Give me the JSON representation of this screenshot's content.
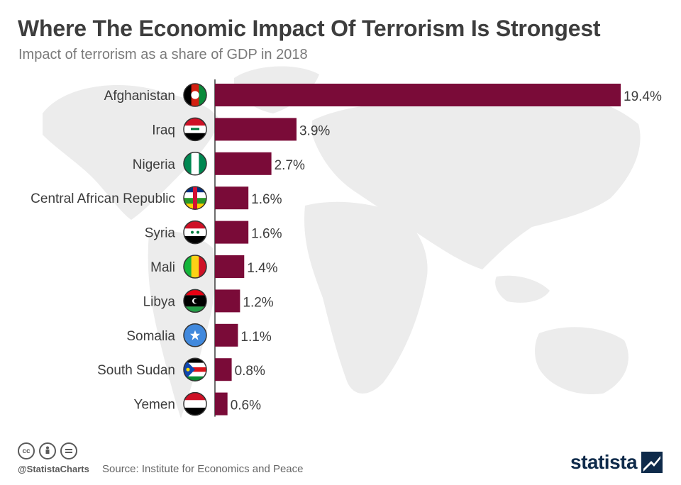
{
  "title": "Where The Economic Impact Of Terrorism Is Strongest",
  "subtitle": "Impact of terrorism as a share of GDP in 2018",
  "colors": {
    "bar": "#7a0b38",
    "text": "#3d3d3d",
    "map": "#ececec"
  },
  "chart_data": {
    "type": "bar",
    "orientation": "horizontal",
    "categories": [
      "Afghanistan",
      "Iraq",
      "Nigeria",
      "Central African Republic",
      "Syria",
      "Mali",
      "Libya",
      "Somalia",
      "South Sudan",
      "Yemen"
    ],
    "values": [
      19.4,
      3.9,
      2.7,
      1.6,
      1.6,
      1.4,
      1.2,
      1.1,
      0.8,
      0.6
    ],
    "labels": [
      "19.4%",
      "3.9%",
      "2.7%",
      "1.6%",
      "1.6%",
      "1.4%",
      "1.2%",
      "1.1%",
      "0.8%",
      "0.6%"
    ],
    "flag_icons": [
      "afghanistan-flag-icon",
      "iraq-flag-icon",
      "nigeria-flag-icon",
      "central-african-republic-flag-icon",
      "syria-flag-icon",
      "mali-flag-icon",
      "libya-flag-icon",
      "somalia-flag-icon",
      "south-sudan-flag-icon",
      "yemen-flag-icon"
    ],
    "xlim": [
      0,
      19.4
    ],
    "grid": false,
    "legend": "none"
  },
  "footer": {
    "icons": [
      "cc-icon",
      "by-icon",
      "nd-icon"
    ],
    "handle": "@StatistaCharts",
    "source": "Source: Institute for Economics and Peace",
    "logo": "statista"
  }
}
